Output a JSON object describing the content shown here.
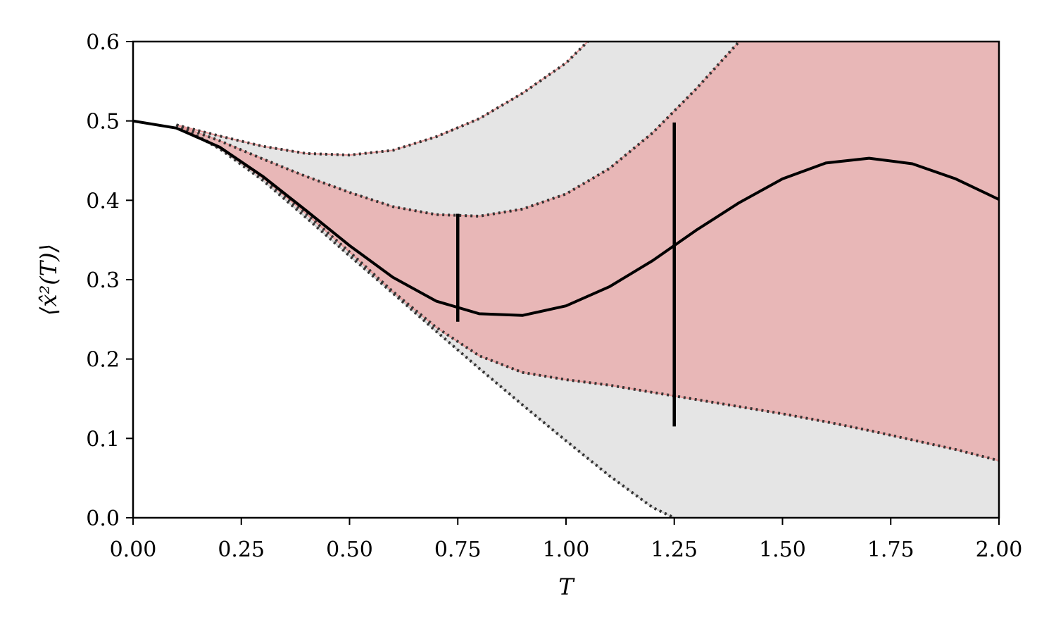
{
  "chart_data": {
    "type": "line",
    "title": "",
    "xlabel": "T",
    "ylabel": "⟨x̂²(T)⟩",
    "xlim": [
      0.0,
      2.0
    ],
    "ylim": [
      0.0,
      0.6
    ],
    "x_ticks": [
      "0.00",
      "0.25",
      "0.50",
      "0.75",
      "1.00",
      "1.25",
      "1.50",
      "1.75",
      "2.00"
    ],
    "y_ticks": [
      "0.0",
      "0.1",
      "0.2",
      "0.3",
      "0.4",
      "0.5",
      "0.6"
    ],
    "grid": false,
    "colors": {
      "outer_band_fill": "#e5e5e5",
      "inner_band_fill": "#e8b7b7",
      "inner_band_edge": "#e89a9a",
      "bound_line": "#333333",
      "mean_line": "#000000"
    },
    "mean": {
      "x": [
        0.0,
        0.1,
        0.2,
        0.3,
        0.4,
        0.5,
        0.6,
        0.7,
        0.8,
        0.9,
        1.0,
        1.1,
        1.2,
        1.3,
        1.4,
        1.5,
        1.6,
        1.7,
        1.8,
        1.9,
        2.0
      ],
      "y": [
        0.5,
        0.491,
        0.467,
        0.43,
        0.387,
        0.343,
        0.303,
        0.273,
        0.257,
        0.255,
        0.267,
        0.291,
        0.324,
        0.362,
        0.397,
        0.427,
        0.447,
        0.453,
        0.446,
        0.427,
        0.401
      ]
    },
    "outer_band": {
      "upper": {
        "x": [
          0.1,
          0.2,
          0.3,
          0.4,
          0.5,
          0.6,
          0.7,
          0.8,
          0.9,
          1.0,
          1.05
        ],
        "y": [
          0.495,
          0.481,
          0.468,
          0.459,
          0.457,
          0.463,
          0.48,
          0.503,
          0.535,
          0.573,
          0.6
        ]
      },
      "lower": {
        "x": [
          0.1,
          0.2,
          0.3,
          0.4,
          0.5,
          0.6,
          0.7,
          0.8,
          0.9,
          1.0,
          1.1,
          1.2,
          1.25,
          2.0
        ],
        "y": [
          0.495,
          0.465,
          0.425,
          0.378,
          0.33,
          0.283,
          0.235,
          0.188,
          0.142,
          0.097,
          0.053,
          0.013,
          0.0,
          0.0
        ]
      }
    },
    "inner_band": {
      "upper": {
        "x": [
          0.1,
          0.2,
          0.3,
          0.4,
          0.5,
          0.6,
          0.7,
          0.8,
          0.9,
          1.0,
          1.1,
          1.2,
          1.3,
          1.4
        ],
        "y": [
          0.495,
          0.475,
          0.452,
          0.43,
          0.41,
          0.392,
          0.382,
          0.38,
          0.389,
          0.408,
          0.44,
          0.485,
          0.54,
          0.6
        ]
      },
      "lower": {
        "x": [
          0.1,
          0.2,
          0.3,
          0.4,
          0.5,
          0.6,
          0.7,
          0.8,
          0.9,
          1.0,
          1.1,
          1.2,
          1.3,
          1.4,
          1.5,
          1.6,
          1.7,
          1.8,
          1.9,
          2.0
        ],
        "y": [
          0.495,
          0.466,
          0.428,
          0.383,
          0.335,
          0.285,
          0.24,
          0.204,
          0.183,
          0.174,
          0.167,
          0.158,
          0.149,
          0.14,
          0.131,
          0.121,
          0.11,
          0.098,
          0.086,
          0.072
        ]
      }
    },
    "error_bars": [
      {
        "x": 0.75,
        "y_low": 0.247,
        "y_high": 0.383
      },
      {
        "x": 1.25,
        "y_low": 0.115,
        "y_high": 0.498
      }
    ]
  }
}
